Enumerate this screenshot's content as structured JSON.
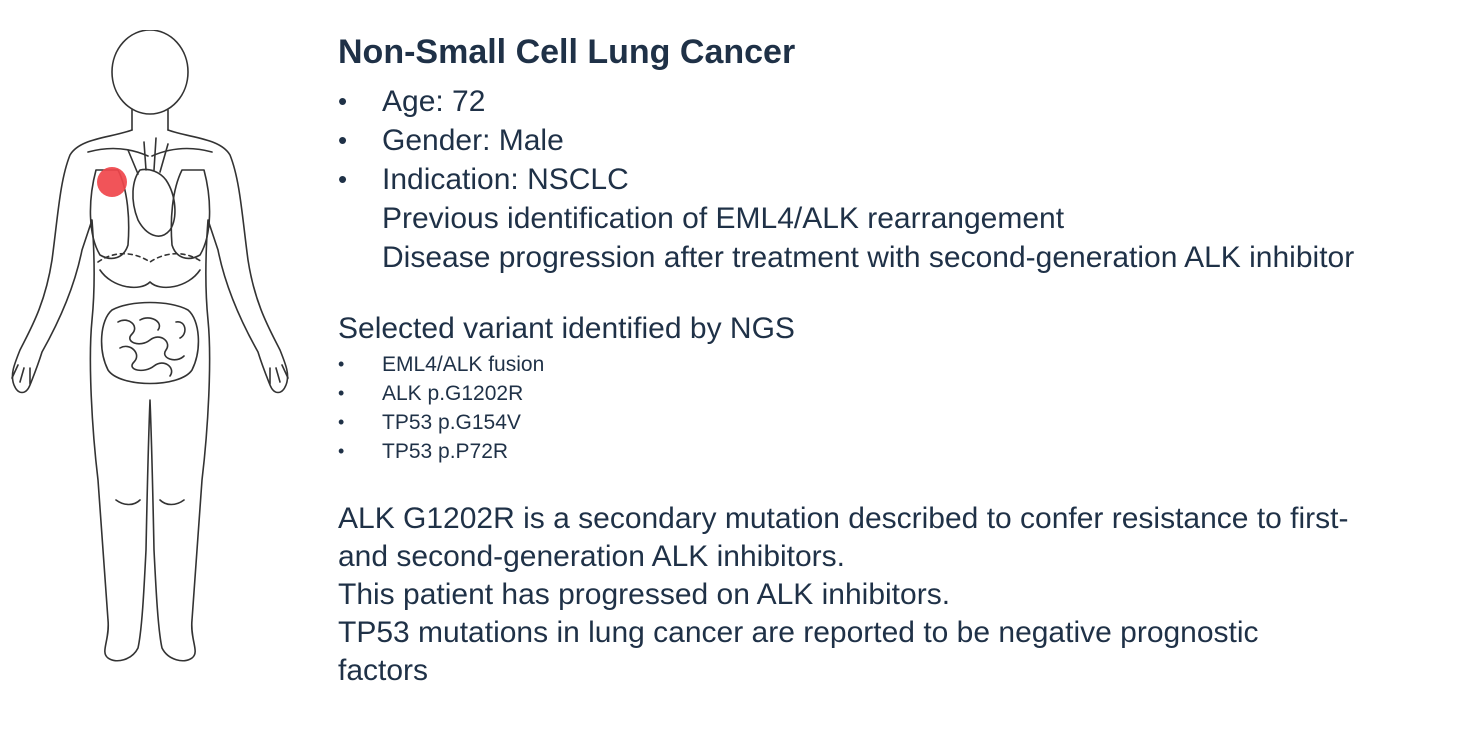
{
  "header": {
    "title": "Non-Small Cell Lung Cancer"
  },
  "patient": {
    "bullets": [
      "Age: 72",
      "Gender: Male",
      "Indication: NSCLC"
    ],
    "sublines": [
      "Previous identification of EML4/ALK rearrangement",
      "Disease progression after treatment with second-generation ALK inhibitor"
    ]
  },
  "variants": {
    "heading": "Selected variant identified by NGS",
    "items": [
      "EML4/ALK fusion",
      "ALK p.G1202R",
      "TP53 p.G154V",
      "TP53 p.P72R"
    ]
  },
  "notes": {
    "line1": "ALK G1202R is a secondary mutation described to confer resistance to first-",
    "line2": "and second-generation ALK inhibitors.",
    "line3": "This patient has progressed on ALK inhibitors.",
    "line4": "TP53 mutations in lung cancer are reported to be negative prognostic",
    "line5": "factors"
  },
  "figure": {
    "tumor_color": "#f0454b",
    "outline_color": "#333333",
    "icon": "human-body-anatomy-icon"
  }
}
